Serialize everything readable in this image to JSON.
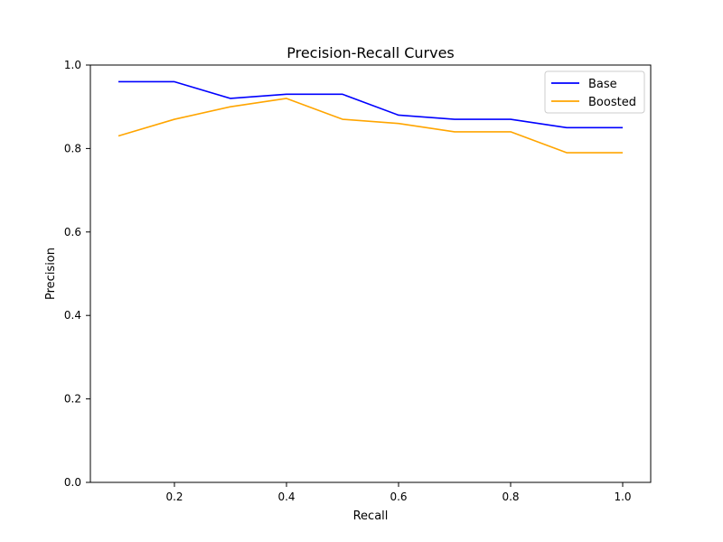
{
  "chart_data": {
    "type": "line",
    "title": "Precision-Recall Curves",
    "xlabel": "Recall",
    "ylabel": "Precision",
    "xlim": [
      0.05,
      1.05
    ],
    "ylim": [
      0.0,
      1.0
    ],
    "xticks": [
      0.2,
      0.4,
      0.6,
      0.8,
      1.0
    ],
    "xtick_labels": [
      "0.2",
      "0.4",
      "0.6",
      "0.8",
      "1.0"
    ],
    "yticks": [
      0.0,
      0.2,
      0.4,
      0.6,
      0.8,
      1.0
    ],
    "ytick_labels": [
      "0.0",
      "0.2",
      "0.4",
      "0.6",
      "0.8",
      "1.0"
    ],
    "grid": false,
    "legend_position": "top-right",
    "x": [
      0.1,
      0.2,
      0.3,
      0.4,
      0.5,
      0.6,
      0.7,
      0.8,
      0.9,
      1.0
    ],
    "series": [
      {
        "name": "Base",
        "color": "#0000ff",
        "values": [
          0.96,
          0.96,
          0.92,
          0.93,
          0.93,
          0.88,
          0.87,
          0.87,
          0.85,
          0.85
        ]
      },
      {
        "name": "Boosted",
        "color": "#ffa500",
        "values": [
          0.83,
          0.87,
          0.9,
          0.92,
          0.87,
          0.86,
          0.84,
          0.84,
          0.79,
          0.79
        ]
      }
    ]
  }
}
